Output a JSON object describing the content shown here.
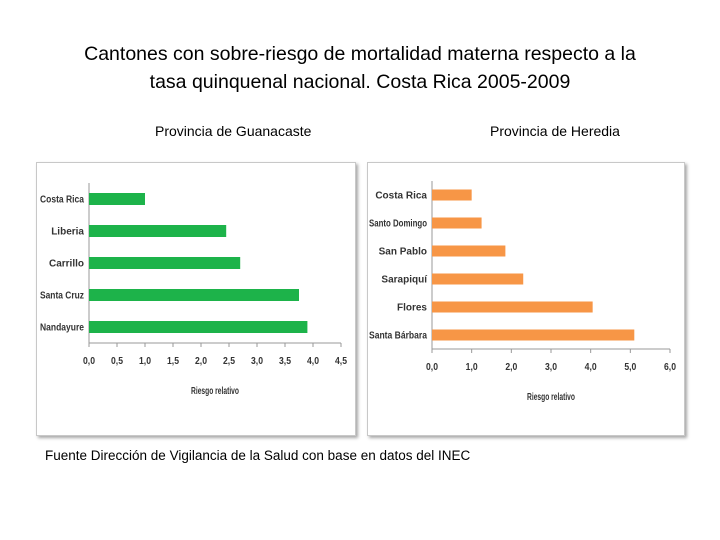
{
  "title_lines": [
    "Cantones con sobre-riesgo de mortalidad materna respecto a la",
    "tasa quinquenal nacional. Costa Rica 2005-2009"
  ],
  "source": "Fuente Dirección de Vigilancia de la Salud con base en datos del INEC",
  "colors": {
    "guanacaste": "#1db34a",
    "heredia": "#f79646",
    "axis": "#999999"
  },
  "chart_data": [
    {
      "type": "bar",
      "orientation": "horizontal",
      "title": "Provincia de Guanacaste",
      "categories": [
        "Costa Rica",
        "Liberia",
        "Carrillo",
        "Santa Cruz",
        "Nandayure"
      ],
      "values": [
        1.0,
        2.45,
        2.7,
        3.75,
        3.9
      ],
      "xlabel": "Riesgo relativo",
      "xlim": [
        0,
        4.5
      ],
      "xticks": [
        "0,0",
        "0,5",
        "1,0",
        "1,5",
        "2,0",
        "2,5",
        "3,0",
        "3,5",
        "4,0",
        "4,5"
      ],
      "grid": false
    },
    {
      "type": "bar",
      "orientation": "horizontal",
      "title": "Provincia de Heredia",
      "categories": [
        "Costa Rica",
        "Santo Domingo",
        "San Pablo",
        "Sarapiquí",
        "Flores",
        "Santa Bárbara"
      ],
      "values": [
        1.0,
        1.25,
        1.85,
        2.3,
        4.05,
        5.1
      ],
      "xlabel": "Riesgo relativo",
      "xlim": [
        0,
        6
      ],
      "xticks": [
        "0,0",
        "1,0",
        "2,0",
        "3,0",
        "4,0",
        "5,0",
        "6,0"
      ],
      "grid": false
    }
  ]
}
